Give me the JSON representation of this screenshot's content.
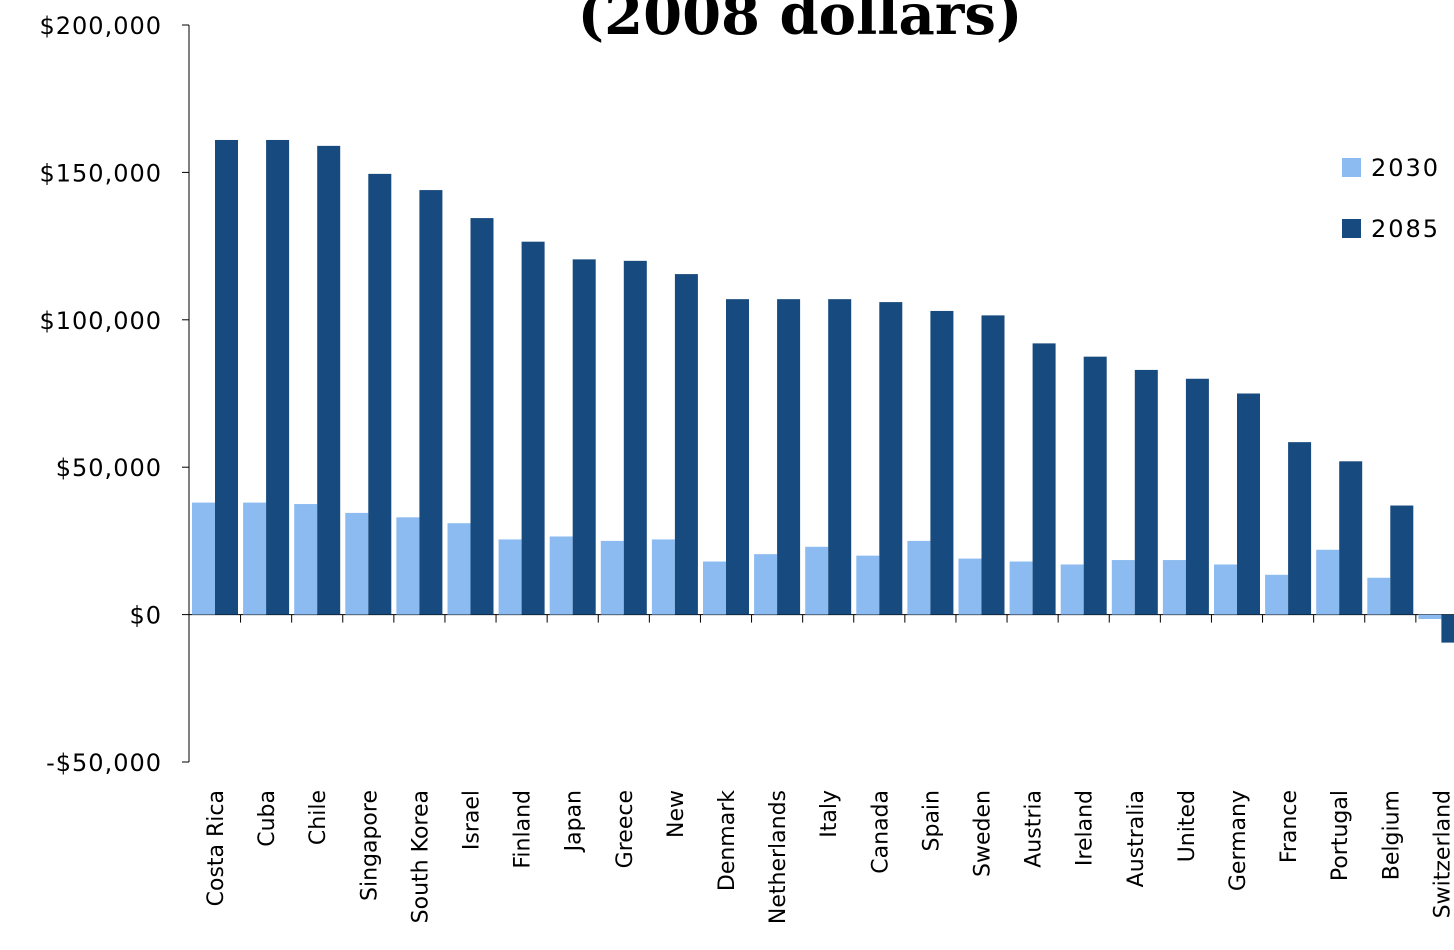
{
  "chart_data": {
    "type": "bar",
    "title": "(2008 dollars)",
    "xlabel": "",
    "ylabel": "",
    "ylim": [
      -50000,
      200000
    ],
    "yticks": [
      200000,
      150000,
      100000,
      50000,
      0,
      -50000
    ],
    "ytick_labels": [
      "$200,000",
      "$150,000",
      "$100,000",
      "$50,000",
      "$0",
      "-$50,000"
    ],
    "legend_position": "right",
    "categories": [
      "Costa Rica",
      "Cuba",
      "Chile",
      "Singapore",
      "South Korea",
      "Israel",
      "Finland",
      "Japan",
      "Greece",
      "New",
      "Denmark",
      "Netherlands",
      "Italy",
      "Canada",
      "Spain",
      "Sweden",
      "Austria",
      "Ireland",
      "Australia",
      "United",
      "Germany",
      "France",
      "Portugal",
      "Belgium",
      "Switzerland"
    ],
    "series": [
      {
        "name": "2030",
        "color": "#8BBBF0",
        "values": [
          38000,
          38000,
          37500,
          34500,
          33000,
          31000,
          25500,
          26500,
          25000,
          25500,
          18000,
          20500,
          23000,
          20000,
          25000,
          19000,
          18000,
          17000,
          18500,
          18500,
          17000,
          13500,
          22000,
          12500,
          -1500
        ]
      },
      {
        "name": "2085",
        "color": "#174A7E",
        "values": [
          161000,
          161000,
          159000,
          149500,
          144000,
          134500,
          126500,
          120500,
          120000,
          115500,
          107000,
          107000,
          107000,
          106000,
          103000,
          101500,
          92000,
          87500,
          83000,
          80000,
          75000,
          58500,
          52000,
          37000,
          -9500
        ]
      }
    ]
  }
}
